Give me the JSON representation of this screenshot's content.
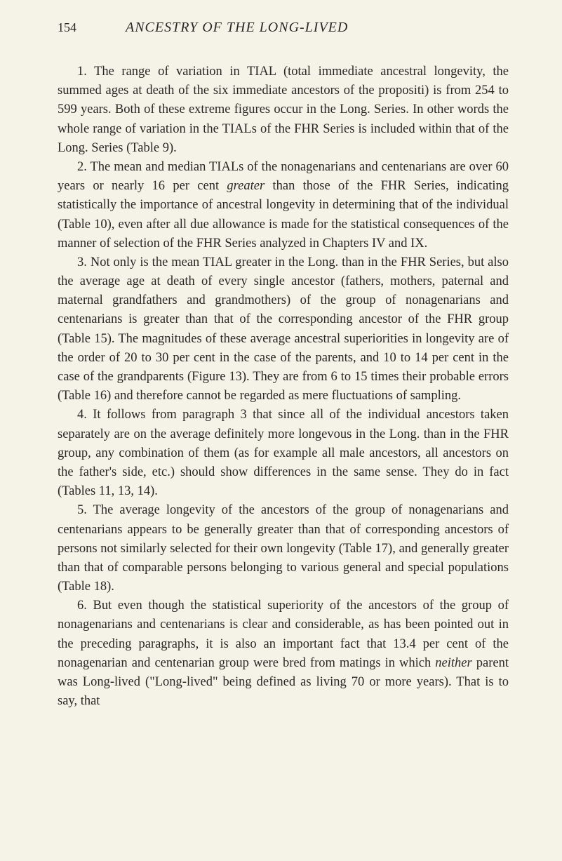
{
  "header": {
    "page_number": "154",
    "title": "ANCESTRY OF THE LONG-LIVED"
  },
  "paragraphs": {
    "p1_a": "1. The range of variation in TIAL (total immediate ancestral longevity, the summed ages at death of the six immediate ancestors of the propositi) is from 254 to 599 years. Both of these extreme figures occur in the Long. Series. In other words the whole range of variation in the TIALs of the FHR Series is included within that of the Long. Series (Table 9).",
    "p2_a": "2. The mean and median TIALs of the nonagenarians and centenarians are over 60 years or nearly 16 per cent ",
    "p2_greater": "greater",
    "p2_b": " than those of the FHR Series, indicating statistically the importance of ancestral longevity in determining that of the individual (Table 10), even after all due allowance is made for the statistical consequences of the manner of selection of the FHR Series analyzed in Chapters IV and IX.",
    "p3_a": "3. Not only is the mean TIAL greater in the Long. than in the FHR Series, but also the average age at death of every single ancestor (fathers, mothers, paternal and maternal grandfathers and grandmothers) of the group of nonagenarians and centenarians is greater than that of the corresponding ancestor of the FHR group (Table 15). The magnitudes of these average ancestral superiorities in longevity are of the order of 20 to 30 per cent in the case of the parents, and 10 to 14 per cent in the case of the grandparents (Figure 13). They are from 6 to 15 times their probable errors (Table 16) and therefore cannot be regarded as mere fluctuations of sampling.",
    "p4_a": "4. It follows from paragraph 3 that since all of the individual ancestors taken separately are on the average definitely more longevous in the Long. than in the FHR group, any combination of them (as for example all male ancestors, all ancestors on the father's side, etc.) should show differences in the same sense. They do in fact (Tables 11, 13, 14).",
    "p5_a": "5. The average longevity of the ancestors of the group of nonagenarians and centenarians appears to be generally greater than that of corresponding ancestors of persons not similarly selected for their own longevity (Table 17), and generally greater than that of comparable persons belonging to various general and special populations (Table 18).",
    "p6_a": "6. But even though the statistical superiority of the ancestors of the group of nonagenarians and centenarians is clear and considerable, as has been pointed out in the preceding paragraphs, it is also an important fact that 13.4 per cent of the nonagenarian and centenarian group were bred from matings in which ",
    "p6_neither": "neither",
    "p6_b": " parent was Long-lived (\"Long-lived\" being defined as living 70 or more years). That is to say, that"
  },
  "colors": {
    "background": "#f5f2e8",
    "text": "#2a2824"
  },
  "typography": {
    "body_fontsize": 18.5,
    "title_fontsize": 20,
    "pagenum_fontsize": 18,
    "line_height": 1.47,
    "font_family": "Times New Roman",
    "text_indent": 28
  }
}
